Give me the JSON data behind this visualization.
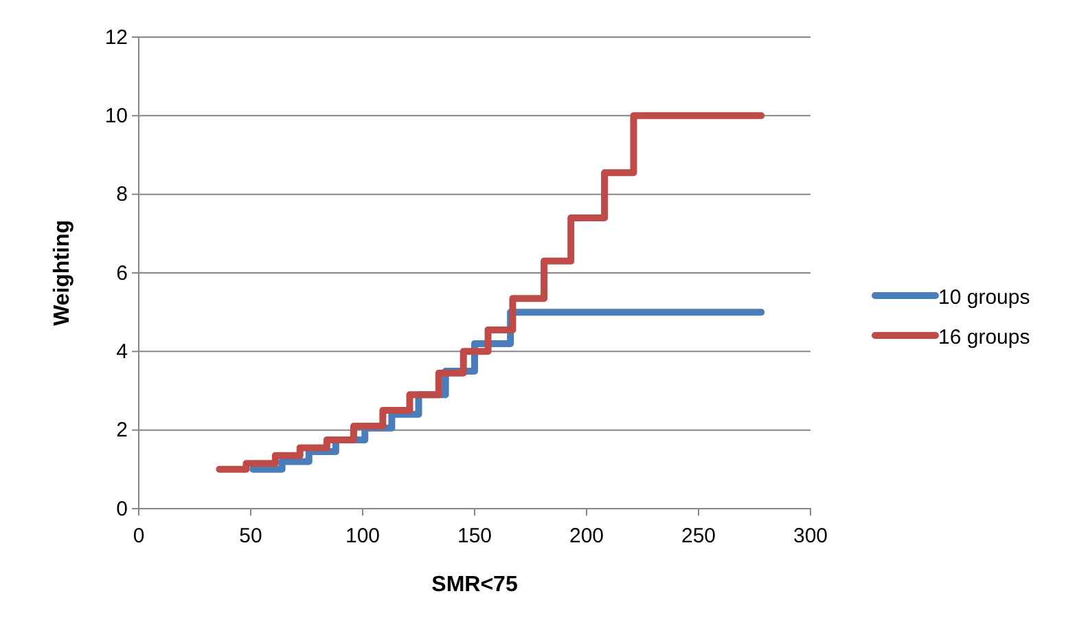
{
  "chart_data": {
    "type": "step",
    "xlabel": "SMR<75",
    "ylabel": "Weighting",
    "xlim": [
      0,
      300
    ],
    "xticks": [
      0,
      50,
      100,
      150,
      200,
      250,
      300
    ],
    "ylim": [
      0,
      12
    ],
    "yticks": [
      0,
      2,
      4,
      6,
      8,
      10,
      12
    ],
    "grid": "y",
    "legend": "right",
    "line_style": "solid",
    "marker": "none",
    "series": [
      {
        "name": "10 groups",
        "color": "#4a7ebb",
        "x": [
          51,
          64,
          76,
          88,
          101,
          113,
          125,
          137,
          150,
          166,
          278
        ],
        "values": [
          1,
          1.2,
          1.45,
          1.75,
          2.05,
          2.4,
          2.9,
          3.5,
          4.2,
          5,
          5
        ]
      },
      {
        "name": "16 groups",
        "color": "#be4b48",
        "x": [
          36,
          48,
          61,
          72,
          84,
          96,
          109,
          121,
          134,
          145,
          156,
          167,
          181,
          193,
          208,
          221,
          278
        ],
        "values": [
          1,
          1.15,
          1.35,
          1.55,
          1.75,
          2.1,
          2.5,
          2.9,
          3.45,
          4.0,
          4.55,
          5.35,
          6.3,
          7.4,
          8.55,
          10,
          10
        ]
      }
    ]
  }
}
